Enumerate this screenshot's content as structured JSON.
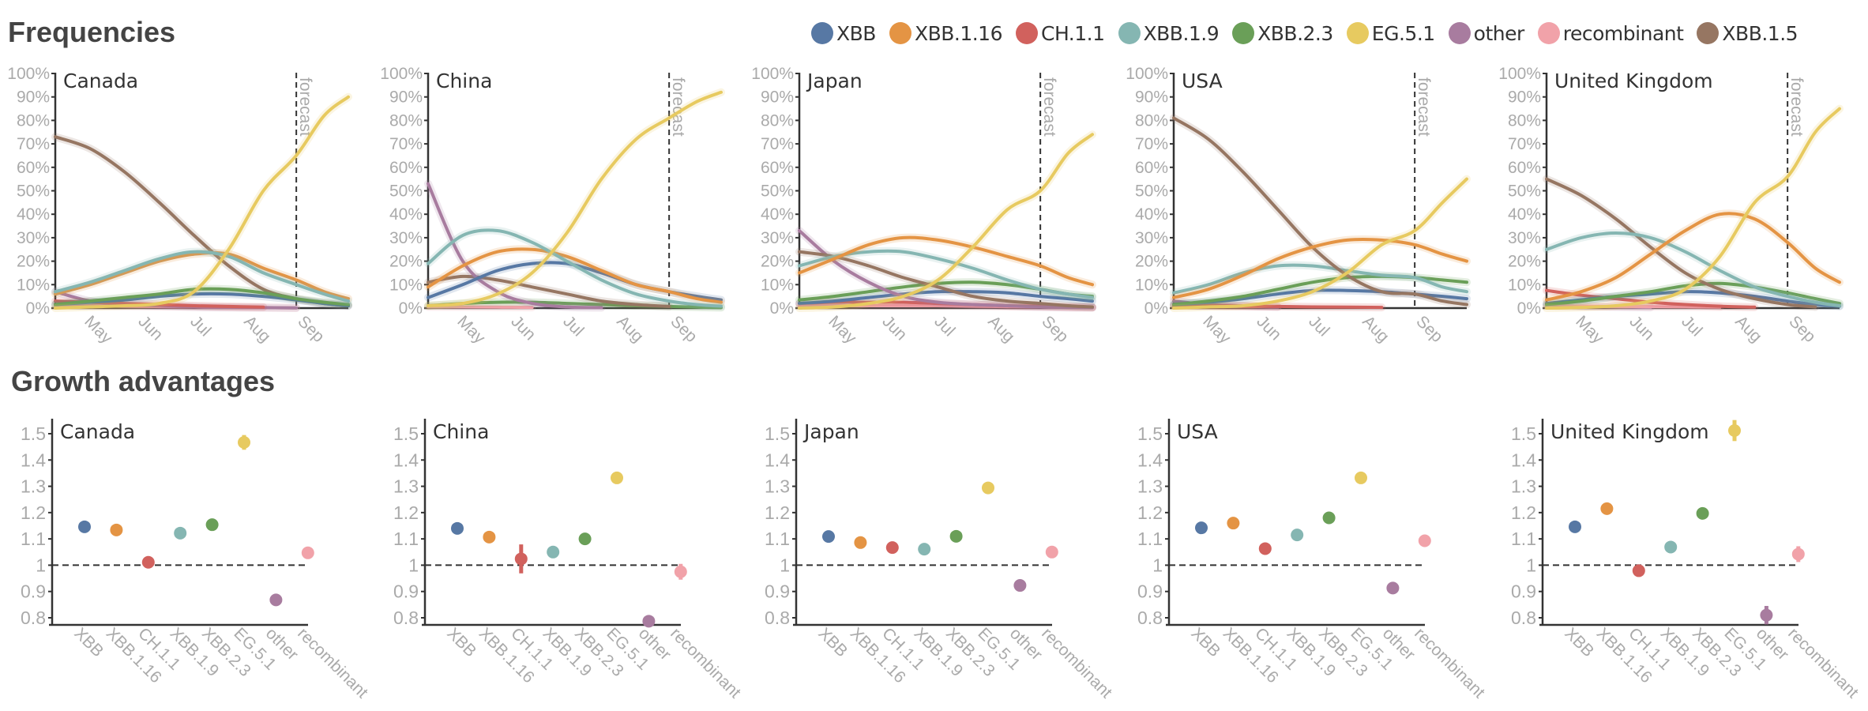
{
  "titles": {
    "frequencies": "Frequencies",
    "growth": "Growth advantages"
  },
  "legend": [
    {
      "name": "XBB",
      "color": "#5778a4"
    },
    {
      "name": "XBB.1.16",
      "color": "#e49444"
    },
    {
      "name": "CH.1.1",
      "color": "#d1615d"
    },
    {
      "name": "XBB.1.9",
      "color": "#85b6b2"
    },
    {
      "name": "XBB.2.3",
      "color": "#6a9f58"
    },
    {
      "name": "EG.5.1",
      "color": "#e7ca60"
    },
    {
      "name": "other",
      "color": "#a87c9f"
    },
    {
      "name": "recombinant",
      "color": "#f1a2a9"
    },
    {
      "name": "XBB.1.5",
      "color": "#967662"
    }
  ],
  "chart_data": [
    {
      "type": "line",
      "title": "Frequencies",
      "x_unit": "days since Apr 11",
      "x_range": [
        0,
        169
      ],
      "x_ticks": [
        {
          "label": "May",
          "x": 20
        },
        {
          "label": "Jun",
          "x": 51
        },
        {
          "label": "Jul",
          "x": 81
        },
        {
          "label": "Aug",
          "x": 112
        },
        {
          "label": "Sep",
          "x": 143
        }
      ],
      "forecast_x": 139,
      "forecast_label": "forecast",
      "ylim": [
        0,
        100
      ],
      "y_ticks": [
        "0%",
        "10%",
        "20%",
        "30%",
        "40%",
        "50%",
        "60%",
        "70%",
        "80%",
        "90%",
        "100%"
      ],
      "sample_x": [
        0,
        20,
        40,
        60,
        80,
        100,
        120,
        139,
        155,
        169
      ],
      "panels": [
        {
          "country": "Canada",
          "series": [
            {
              "name": "XBB.1.5",
              "values": [
                73,
                68,
                58,
                45,
                31,
                18,
                8,
                4,
                2,
                1
              ]
            },
            {
              "name": "recombinant",
              "values": [
                1,
                1,
                0.8,
                0.6,
                0.5,
                0.3,
                0.2,
                0.1,
                null,
                null
              ]
            },
            {
              "name": "other",
              "values": [
                7,
                3,
                1.5,
                1,
                0.5,
                0.3,
                0.2,
                0.1,
                null,
                null
              ]
            },
            {
              "name": "CH.1.1",
              "values": [
                3,
                2.5,
                2,
                1.5,
                1,
                0.7,
                0.4,
                null,
                null,
                null
              ]
            },
            {
              "name": "XBB",
              "values": [
                1.5,
                2.5,
                3.5,
                5,
                6,
                6,
                5,
                3.5,
                2,
                1
              ]
            },
            {
              "name": "XBB.2.3",
              "values": [
                1.5,
                3,
                4.5,
                6,
                8,
                8,
                6.5,
                4,
                2.5,
                1.5
              ]
            },
            {
              "name": "XBB.1.16",
              "values": [
                6,
                10,
                15,
                20,
                23,
                23,
                17,
                12,
                7,
                4
              ]
            },
            {
              "name": "XBB.1.9",
              "values": [
                7,
                11,
                16,
                21,
                24,
                22,
                15,
                10,
                6,
                3
              ]
            },
            {
              "name": "EG.5.1",
              "values": [
                0,
                0.5,
                1,
                2,
                7,
                25,
                50,
                65,
                82,
                90
              ]
            }
          ]
        },
        {
          "country": "China",
          "series": [
            {
              "name": "recombinant",
              "values": [
                0.5,
                0.5,
                0.4,
                0.3,
                null,
                null,
                null,
                null,
                null,
                null
              ]
            },
            {
              "name": "XBB.2.3",
              "values": [
                1,
                2,
                2.5,
                2.5,
                2,
                1.5,
                1,
                0.7,
                0.4,
                0.2
              ]
            },
            {
              "name": "XBB.1.5",
              "values": [
                11,
                13.5,
                12,
                9,
                6,
                3,
                1.5,
                0.7,
                null,
                null
              ]
            },
            {
              "name": "other",
              "values": [
                53,
                20,
                7,
                2,
                0.5,
                0.2,
                null,
                null,
                null,
                null
              ]
            },
            {
              "name": "XBB",
              "values": [
                4.5,
                10,
                16,
                19,
                19,
                15,
                10,
                7,
                5,
                3.5
              ]
            },
            {
              "name": "XBB.1.16",
              "values": [
                9,
                18,
                24,
                25,
                22,
                16,
                10,
                7,
                4,
                2.5
              ]
            },
            {
              "name": "XBB.1.9",
              "values": [
                19,
                31,
                33,
                28,
                20,
                12,
                6,
                3,
                1.5,
                0.8
              ]
            },
            {
              "name": "EG.5.1",
              "values": [
                1,
                2,
                6,
                15,
                32,
                55,
                72,
                81,
                88,
                92
              ]
            }
          ]
        },
        {
          "country": "Japan",
          "series": [
            {
              "name": "recombinant",
              "values": [
                1,
                1,
                1,
                1,
                1,
                0.8,
                0.6,
                0.5,
                0.3,
                0.2
              ]
            },
            {
              "name": "CH.1.1",
              "values": [
                2,
                2.5,
                2.5,
                2.5,
                2,
                1.5,
                1,
                0.8,
                0.5,
                0.3
              ]
            },
            {
              "name": "XBB",
              "values": [
                2,
                3,
                4.5,
                6,
                7,
                7,
                6.5,
                5,
                4,
                3
              ]
            },
            {
              "name": "XBB.2.3",
              "values": [
                3.5,
                5,
                7,
                9,
                10.5,
                11,
                10,
                8,
                6,
                5
              ]
            },
            {
              "name": "other",
              "values": [
                33,
                20,
                11,
                5,
                2.5,
                1.5,
                1,
                0.5,
                0.3,
                0.2
              ]
            },
            {
              "name": "XBB.1.5",
              "values": [
                24,
                22,
                18,
                13,
                9,
                5,
                3,
                2,
                1,
                0.5
              ]
            },
            {
              "name": "XBB.1.9",
              "values": [
                18,
                22,
                24,
                24,
                21,
                17,
                12,
                8,
                6,
                4.5
              ]
            },
            {
              "name": "XBB.1.16",
              "values": [
                15,
                21,
                27,
                30,
                29,
                26,
                22,
                18,
                13,
                10
              ]
            },
            {
              "name": "EG.5.1",
              "values": [
                0,
                0.5,
                2,
                5,
                12,
                26,
                42,
                50,
                66,
                74
              ]
            }
          ]
        },
        {
          "country": "USA",
          "series": [
            {
              "name": "recombinant",
              "values": [
                1,
                0.9,
                0.7,
                0.5,
                null,
                null,
                null,
                null,
                null,
                null
              ]
            },
            {
              "name": "other",
              "values": [
                3,
                1.5,
                1,
                0.5,
                null,
                null,
                null,
                null,
                null,
                null
              ]
            },
            {
              "name": "CH.1.1",
              "values": [
                1,
                1,
                0.8,
                0.7,
                0.5,
                0.4,
                0.3,
                null,
                null,
                null
              ]
            },
            {
              "name": "XBB",
              "values": [
                1.5,
                2.5,
                4,
                6,
                7.5,
                7.5,
                7,
                6,
                5,
                4
              ]
            },
            {
              "name": "XBB.2.3",
              "values": [
                1.5,
                3,
                5,
                8,
                11,
                13,
                13.5,
                13,
                12,
                11
              ]
            },
            {
              "name": "XBB.1.9",
              "values": [
                6.5,
                10,
                15,
                18,
                18,
                16,
                14,
                13,
                9,
                7
              ]
            },
            {
              "name": "XBB.1.5",
              "values": [
                81,
                72,
                58,
                42,
                26,
                14,
                7,
                6,
                3,
                1.5
              ]
            },
            {
              "name": "XBB.1.16",
              "values": [
                4.5,
                8,
                14,
                21,
                26,
                29,
                29,
                27,
                23,
                20
              ]
            },
            {
              "name": "EG.5.1",
              "values": [
                0,
                0.5,
                1,
                3,
                7,
                15,
                27,
                33,
                45,
                55
              ]
            }
          ]
        },
        {
          "country": "United Kingdom",
          "series": [
            {
              "name": "other",
              "values": [
                1,
                0.8,
                0.5,
                0.3,
                null,
                null,
                null,
                null,
                null,
                null
              ]
            },
            {
              "name": "recombinant",
              "values": [
                1,
                0.8,
                0.7,
                0.6,
                0.5,
                0.4,
                null,
                null,
                null,
                null
              ]
            },
            {
              "name": "CH.1.1",
              "values": [
                7.5,
                5.5,
                4,
                2.5,
                1.5,
                0.8,
                0.4,
                null,
                null,
                null
              ]
            },
            {
              "name": "XBB",
              "values": [
                2,
                3.5,
                5,
                6,
                7,
                6.5,
                5,
                3,
                1.5,
                0.8
              ]
            },
            {
              "name": "XBB.2.3",
              "values": [
                1.5,
                3,
                5,
                7,
                9.5,
                10.5,
                9,
                6.5,
                4,
                2
              ]
            },
            {
              "name": "XBB.1.5",
              "values": [
                55,
                48,
                38,
                26,
                15,
                8,
                4,
                1.5,
                0.5,
                null
              ]
            },
            {
              "name": "XBB.1.9",
              "values": [
                25,
                30,
                32,
                30,
                24,
                16,
                9,
                5,
                2.5,
                1
              ]
            },
            {
              "name": "XBB.1.16",
              "values": [
                3.5,
                7,
                13,
                23,
                33,
                40,
                38,
                28,
                17,
                11
              ]
            },
            {
              "name": "EG.5.1",
              "values": [
                0,
                0.3,
                1,
                3,
                8,
                22,
                45,
                56,
                75,
                85
              ]
            }
          ]
        }
      ]
    },
    {
      "type": "scatter",
      "title": "Growth advantages",
      "categories": [
        "XBB",
        "XBB.1.16",
        "CH.1.1",
        "XBB.1.9",
        "XBB.2.3",
        "EG.5.1",
        "other",
        "recombinant"
      ],
      "tick_labels": [
        "XBB",
        "XBB.1.16",
        "CH.1.1",
        "XBB.1.9",
        "XBB.2.3",
        "EG.5.1",
        "other",
        "recombinant"
      ],
      "ylim": [
        0.78,
        1.56
      ],
      "y_ticks": [
        "0.8",
        "0.9",
        "1",
        "1.1",
        "1.2",
        "1.3",
        "1.4",
        "1.5"
      ],
      "reference_line": 1,
      "panels": [
        {
          "country": "Canada",
          "values": [
            1.146,
            1.134,
            1.011,
            1.122,
            1.154,
            1.467,
            0.868,
            1.047
          ],
          "errors": [
            0,
            0,
            0,
            0,
            0,
            0.028,
            0,
            0
          ]
        },
        {
          "country": "China",
          "values": [
            1.14,
            1.107,
            1.024,
            1.05,
            1.1,
            1.332,
            0.787,
            0.975
          ],
          "errors": [
            0,
            0,
            0.055,
            0,
            0,
            0,
            0,
            0.03
          ]
        },
        {
          "country": "Japan",
          "values": [
            1.109,
            1.086,
            1.067,
            1.061,
            1.11,
            1.294,
            0.923,
            1.05
          ],
          "errors": [
            0,
            0,
            0,
            0,
            0,
            0,
            0,
            0
          ]
        },
        {
          "country": "USA",
          "values": [
            1.142,
            1.16,
            1.063,
            1.115,
            1.18,
            1.332,
            0.913,
            1.093
          ],
          "errors": [
            0,
            0,
            0,
            0,
            0,
            0,
            0,
            0
          ]
        },
        {
          "country": "United Kingdom",
          "values": [
            1.146,
            1.215,
            0.979,
            1.069,
            1.197,
            1.512,
            0.81,
            1.042
          ],
          "errors": [
            0,
            0,
            0,
            0,
            0,
            0.04,
            0.035,
            0.03
          ]
        }
      ]
    }
  ]
}
